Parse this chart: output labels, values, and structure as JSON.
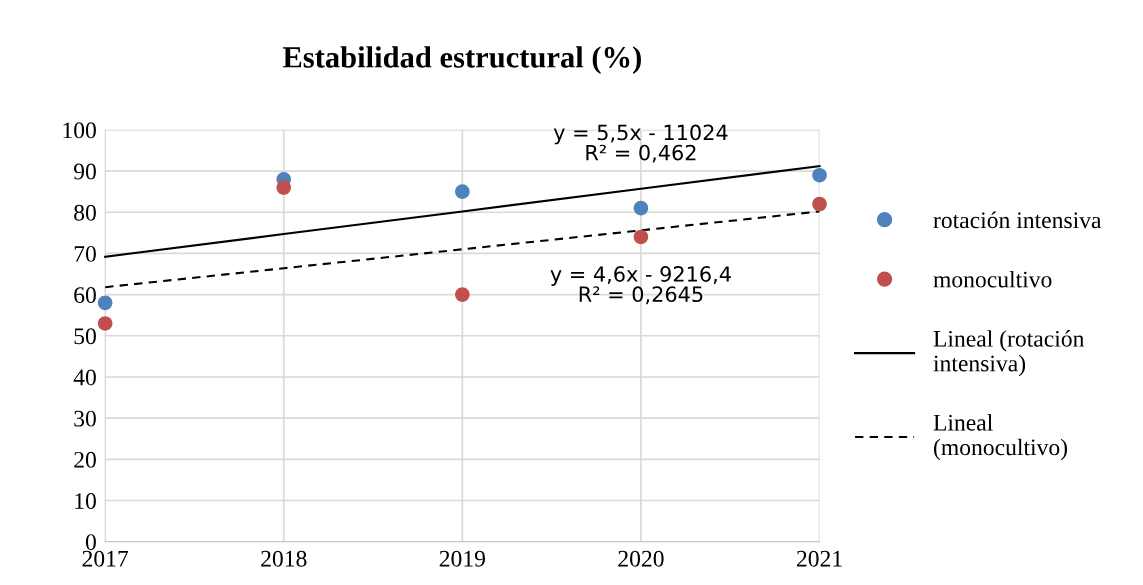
{
  "chart_data": {
    "type": "scatter",
    "title": "Estabilidad estructural (%)",
    "x": [
      2017,
      2018,
      2019,
      2020,
      2021
    ],
    "series": [
      {
        "name": "rotación intensiva",
        "color": "#4f81bd",
        "values": [
          58,
          88,
          85,
          81,
          89
        ]
      },
      {
        "name": "monocultivo",
        "color": "#c0504d",
        "values": [
          53,
          86,
          60,
          74,
          82
        ]
      },
      {
        "name": "Lineal (rotación intensiva)",
        "type": "line",
        "color": "#000000",
        "line_style": "solid",
        "marker": "none",
        "values": [
          69.2,
          74.7,
          80.2,
          85.7,
          91.2
        ]
      },
      {
        "name": "Lineal (monocultivo)",
        "type": "line",
        "color": "#000000",
        "line_style": "dashed",
        "marker": "none",
        "values": [
          61.8,
          66.4,
          71.0,
          75.6,
          80.2
        ]
      }
    ],
    "annotations": [
      {
        "text": "y = 5,5x - 11024\nR² = 0,462",
        "x": 2020,
        "y": 85.7
      },
      {
        "text": "y = 4,6x - 9216,4\nR² = 0,2645",
        "x": 2020,
        "y": 75.6
      }
    ],
    "xlim": [
      2017,
      2021
    ],
    "xticks": [
      2017,
      2018,
      2019,
      2020,
      2021
    ],
    "ylim": [
      0,
      100
    ],
    "yticks": [
      0,
      10,
      20,
      30,
      40,
      50,
      60,
      70,
      80,
      90,
      100
    ],
    "grid": true,
    "legend": "right",
    "marker": "circle"
  }
}
